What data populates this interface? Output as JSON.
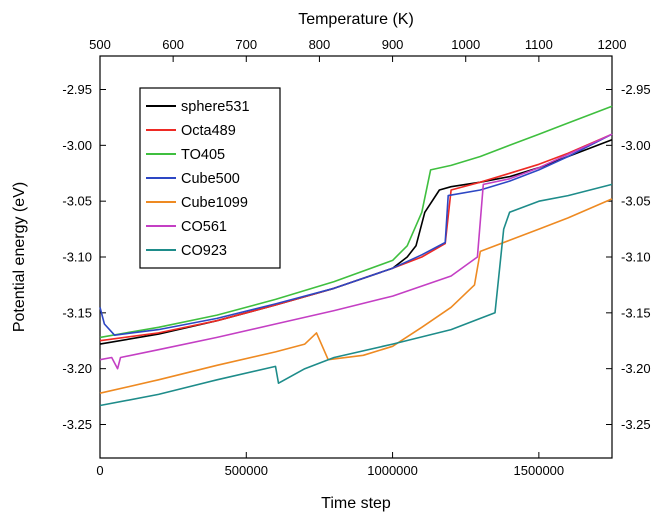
{
  "chart_data": {
    "type": "line",
    "xlabel": "Time step",
    "x2label": "Temperature (K)",
    "ylabel": "Potential energy (eV)",
    "xlim": [
      0,
      1750000
    ],
    "x2lim": [
      500,
      1200
    ],
    "ylim": [
      -3.28,
      -2.92
    ],
    "x_ticks": [
      0,
      500000,
      1000000,
      1500000
    ],
    "x_tick_labels": [
      "0",
      "500000",
      "1000000",
      "1500000"
    ],
    "x2_ticks": [
      500,
      600,
      700,
      800,
      900,
      1000,
      1100,
      1200
    ],
    "x2_tick_labels": [
      "500",
      "600",
      "700",
      "800",
      "900",
      "1000",
      "1100",
      "1200"
    ],
    "y_ticks": [
      -2.95,
      -3.0,
      -3.05,
      -3.1,
      -3.15,
      -3.2,
      -3.25
    ],
    "y_tick_labels": [
      "-2.95",
      "-3.00",
      "-3.05",
      "-3.10",
      "-3.15",
      "-3.20",
      "-3.25"
    ],
    "grid": false,
    "legend_position": "top-left",
    "series": [
      {
        "name": "sphere531",
        "color": "#000000",
        "x": [
          0,
          200000,
          400000,
          600000,
          800000,
          1000000,
          1050000,
          1080000,
          1110000,
          1160000,
          1200000,
          1300000,
          1400000,
          1500000,
          1600000,
          1750000
        ],
        "y": [
          -3.178,
          -3.169,
          -3.157,
          -3.143,
          -3.128,
          -3.11,
          -3.1,
          -3.09,
          -3.06,
          -3.04,
          -3.037,
          -3.033,
          -3.028,
          -3.02,
          -3.01,
          -2.995
        ]
      },
      {
        "name": "Octa489",
        "color": "#ee2a24",
        "x": [
          0,
          200000,
          400000,
          600000,
          800000,
          1000000,
          1100000,
          1180000,
          1200000,
          1300000,
          1400000,
          1500000,
          1600000,
          1750000
        ],
        "y": [
          -3.175,
          -3.168,
          -3.157,
          -3.143,
          -3.128,
          -3.11,
          -3.1,
          -3.088,
          -3.04,
          -3.033,
          -3.025,
          -3.017,
          -3.007,
          -2.99
        ]
      },
      {
        "name": "TO405",
        "color": "#3fbf3f",
        "x": [
          0,
          200000,
          400000,
          600000,
          800000,
          1000000,
          1050000,
          1100000,
          1130000,
          1200000,
          1300000,
          1400000,
          1500000,
          1600000,
          1750000
        ],
        "y": [
          -3.172,
          -3.163,
          -3.152,
          -3.138,
          -3.122,
          -3.103,
          -3.09,
          -3.06,
          -3.022,
          -3.018,
          -3.01,
          -3.0,
          -2.99,
          -2.98,
          -2.965
        ]
      },
      {
        "name": "Cube500",
        "color": "#2d47c4",
        "x": [
          0,
          15000,
          50000,
          200000,
          400000,
          600000,
          800000,
          1000000,
          1100000,
          1180000,
          1190000,
          1300000,
          1400000,
          1500000,
          1600000,
          1750000
        ],
        "y": [
          -3.145,
          -3.16,
          -3.17,
          -3.165,
          -3.155,
          -3.142,
          -3.128,
          -3.11,
          -3.098,
          -3.087,
          -3.045,
          -3.04,
          -3.032,
          -3.022,
          -3.01,
          -2.99
        ]
      },
      {
        "name": "Cube1099",
        "color": "#ee8a22",
        "x": [
          0,
          200000,
          400000,
          600000,
          700000,
          740000,
          780000,
          900000,
          1000000,
          1100000,
          1200000,
          1280000,
          1300000,
          1400000,
          1500000,
          1600000,
          1750000
        ],
        "y": [
          -3.222,
          -3.21,
          -3.197,
          -3.185,
          -3.178,
          -3.168,
          -3.192,
          -3.188,
          -3.18,
          -3.163,
          -3.145,
          -3.125,
          -3.095,
          -3.085,
          -3.075,
          -3.065,
          -3.048
        ]
      },
      {
        "name": "CO561",
        "color": "#c43fc4",
        "x": [
          0,
          40000,
          60000,
          70000,
          200000,
          400000,
          600000,
          800000,
          1000000,
          1200000,
          1290000,
          1310000,
          1400000,
          1500000,
          1600000,
          1750000
        ],
        "y": [
          -3.192,
          -3.19,
          -3.2,
          -3.19,
          -3.183,
          -3.172,
          -3.16,
          -3.148,
          -3.135,
          -3.117,
          -3.1,
          -3.035,
          -3.03,
          -3.02,
          -3.008,
          -2.99
        ]
      },
      {
        "name": "CO923",
        "color": "#1e8c8a",
        "x": [
          0,
          200000,
          400000,
          600000,
          610000,
          700000,
          800000,
          1000000,
          1200000,
          1300000,
          1350000,
          1380000,
          1400000,
          1500000,
          1600000,
          1750000
        ],
        "y": [
          -3.233,
          -3.223,
          -3.21,
          -3.198,
          -3.213,
          -3.2,
          -3.19,
          -3.178,
          -3.165,
          -3.155,
          -3.15,
          -3.075,
          -3.06,
          -3.05,
          -3.045,
          -3.035
        ]
      }
    ]
  }
}
